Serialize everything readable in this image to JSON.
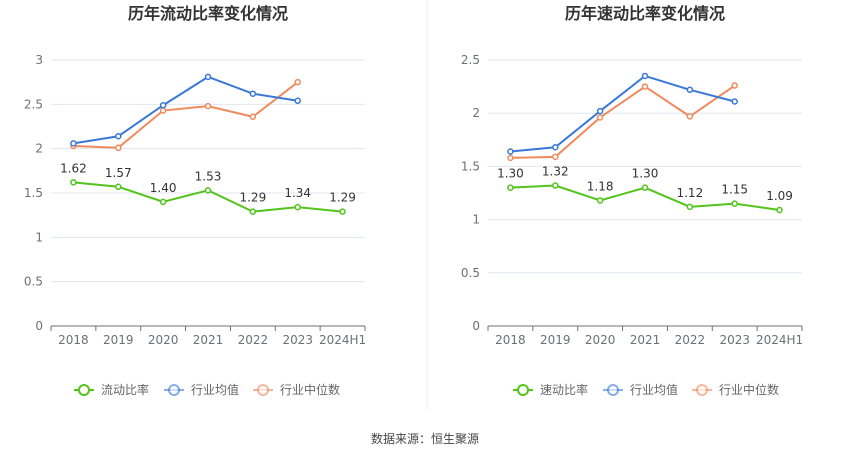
{
  "footer": {
    "source": "数据来源：恒生聚源"
  },
  "colors": {
    "main": "#52c41a",
    "avg": "#3a78d8",
    "median": "#f08a5d"
  },
  "chart_data": [
    {
      "type": "line",
      "title": "历年流动比率变化情况",
      "categories": [
        "2018",
        "2019",
        "2020",
        "2021",
        "2022",
        "2023",
        "2024H1"
      ],
      "ylim": [
        0,
        3
      ],
      "yticks": [
        "0",
        "0.5",
        "1",
        "1.5",
        "2",
        "2.5",
        "3"
      ],
      "grid": true,
      "legend_position": "bottom",
      "series": [
        {
          "name": "流动比率",
          "color": "#52c41a",
          "values": [
            1.62,
            1.57,
            1.4,
            1.53,
            1.29,
            1.34,
            1.29
          ],
          "labels": [
            "1.62",
            "1.57",
            "1.40",
            "1.53",
            "1.29",
            "1.34",
            "1.29"
          ]
        },
        {
          "name": "行业均值",
          "color": "#3a78d8",
          "values": [
            2.06,
            2.14,
            2.49,
            2.81,
            2.62,
            2.54,
            null
          ]
        },
        {
          "name": "行业中位数",
          "color": "#f08a5d",
          "values": [
            2.03,
            2.01,
            2.43,
            2.48,
            2.36,
            2.75,
            null
          ]
        }
      ]
    },
    {
      "type": "line",
      "title": "历年速动比率变化情况",
      "categories": [
        "2018",
        "2019",
        "2020",
        "2021",
        "2022",
        "2023",
        "2024H1"
      ],
      "ylim": [
        0,
        2.5
      ],
      "yticks": [
        "0",
        "0.5",
        "1",
        "1.5",
        "2",
        "2.5"
      ],
      "grid": true,
      "legend_position": "bottom",
      "series": [
        {
          "name": "速动比率",
          "color": "#52c41a",
          "values": [
            1.3,
            1.32,
            1.18,
            1.3,
            1.12,
            1.15,
            1.09
          ],
          "labels": [
            "1.30",
            "1.32",
            "1.18",
            "1.30",
            "1.12",
            "1.15",
            "1.09"
          ]
        },
        {
          "name": "行业均值",
          "color": "#3a78d8",
          "values": [
            1.64,
            1.68,
            2.02,
            2.35,
            2.22,
            2.11,
            null
          ]
        },
        {
          "name": "行业中位数",
          "color": "#f08a5d",
          "values": [
            1.58,
            1.59,
            1.96,
            2.25,
            1.97,
            2.26,
            null
          ]
        }
      ]
    }
  ]
}
